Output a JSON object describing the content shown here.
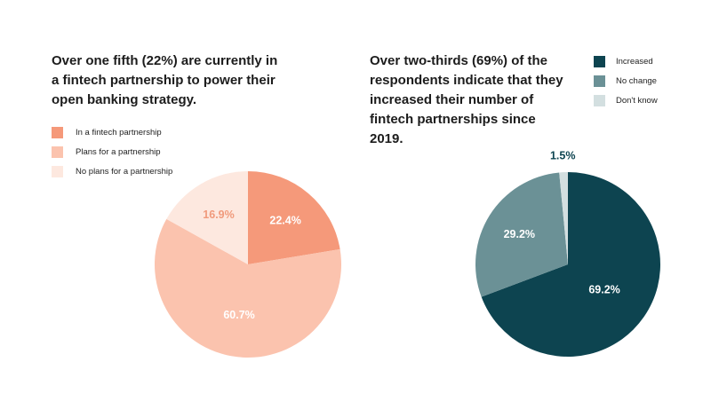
{
  "colors": {
    "left_in_partnership": "#f5997a",
    "left_plans": "#fbc3ae",
    "left_no_plans": "#fde8df",
    "right_increased": "#0d4450",
    "right_no_change": "#6b9196",
    "right_dont_know": "#d3dfe0"
  },
  "chart_data": [
    {
      "type": "pie",
      "title": "Over one fifth (22%) are currently in a fintech partnership to power their open banking strategy.",
      "categories": [
        "In a fintech partnership",
        "Plans for a partnership",
        "No plans for a partnership"
      ],
      "values": [
        22.4,
        60.7,
        16.9
      ],
      "labels": [
        "22.4%",
        "60.7%",
        "16.9%"
      ],
      "legend_position": "top-left"
    },
    {
      "type": "pie",
      "title": "Over two-thirds (69%) of the respondents indicate that they increased their number of fintech partnerships since 2019.",
      "categories": [
        "Increased",
        "No change",
        "Don't know"
      ],
      "values": [
        69.2,
        29.2,
        1.5
      ],
      "labels": [
        "69.2%",
        "29.2%",
        "1.5%"
      ],
      "legend_position": "top-right"
    }
  ]
}
